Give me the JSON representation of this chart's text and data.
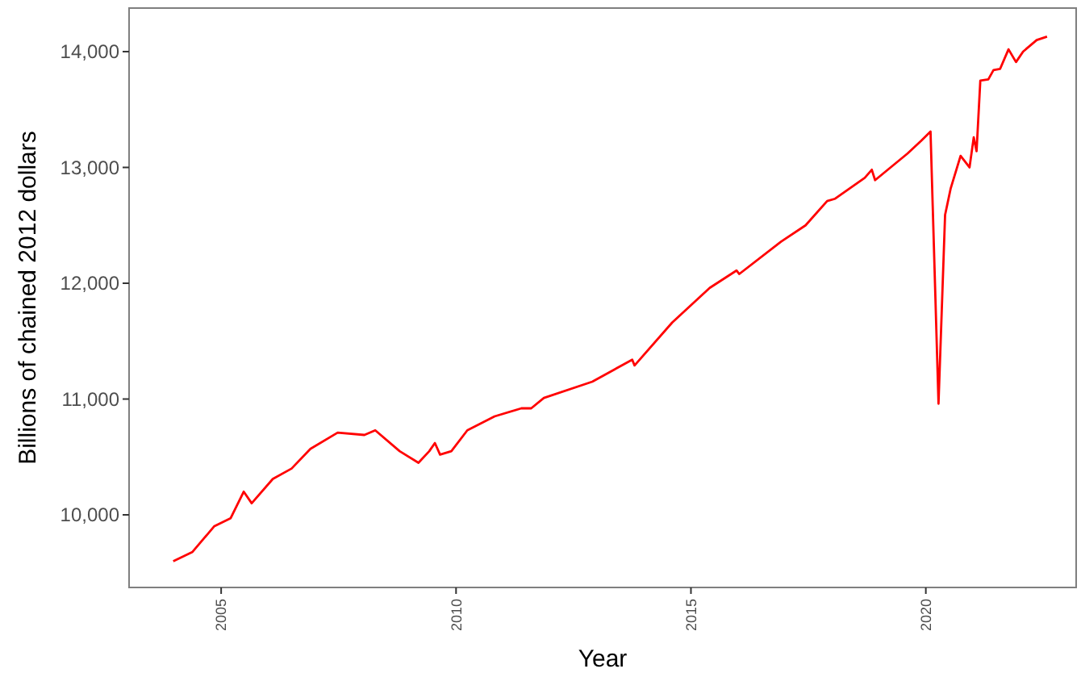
{
  "chart_data": {
    "type": "line",
    "xlabel": "Year",
    "ylabel": "Billions of chained 2012 dollars",
    "xlim": [
      2003.04,
      2023.2
    ],
    "ylim": [
      9373,
      14376
    ],
    "xticks": [
      2005,
      2010,
      2015,
      2020
    ],
    "yticks": [
      {
        "value": 10000,
        "label": "10,000"
      },
      {
        "value": 11000,
        "label": "11,000"
      },
      {
        "value": 12000,
        "label": "12,000"
      },
      {
        "value": 13000,
        "label": "13,000"
      },
      {
        "value": 14000,
        "label": "14,000"
      }
    ],
    "line_style": "solid",
    "series": [
      {
        "color": "#ff0000",
        "x": [
          2003.98,
          2004.39,
          2004.85,
          2005.2,
          2005.48,
          2005.65,
          2006.1,
          2006.5,
          2006.9,
          2007.48,
          2008.05,
          2008.28,
          2008.8,
          2009.2,
          2009.43,
          2009.55,
          2009.66,
          2009.9,
          2010.24,
          2010.82,
          2011.39,
          2011.6,
          2011.87,
          2012.9,
          2013.75,
          2013.8,
          2014.6,
          2015.4,
          2015.97,
          2016.03,
          2016.92,
          2017.44,
          2017.9,
          2018.07,
          2018.7,
          2018.85,
          2018.92,
          2019.61,
          2019.9,
          2020.1,
          2020.27,
          2020.41,
          2020.53,
          2020.74,
          2020.93,
          2021.02,
          2021.08,
          2021.16,
          2021.33,
          2021.44,
          2021.58,
          2021.76,
          2021.92,
          2022.07,
          2022.36,
          2022.58
        ],
        "values": [
          9600,
          9680,
          9900,
          9970,
          10200,
          10100,
          10310,
          10400,
          10570,
          10710,
          10690,
          10730,
          10550,
          10450,
          10550,
          10620,
          10520,
          10550,
          10730,
          10850,
          10920,
          10920,
          11010,
          11150,
          11340,
          11290,
          11660,
          11960,
          12110,
          12080,
          12360,
          12500,
          12710,
          12730,
          12910,
          12980,
          12890,
          13120,
          13230,
          13310,
          10960,
          12590,
          12820,
          13100,
          13000,
          13260,
          13140,
          13750,
          13760,
          13840,
          13850,
          14020,
          13910,
          14000,
          14100,
          14130
        ]
      }
    ]
  }
}
